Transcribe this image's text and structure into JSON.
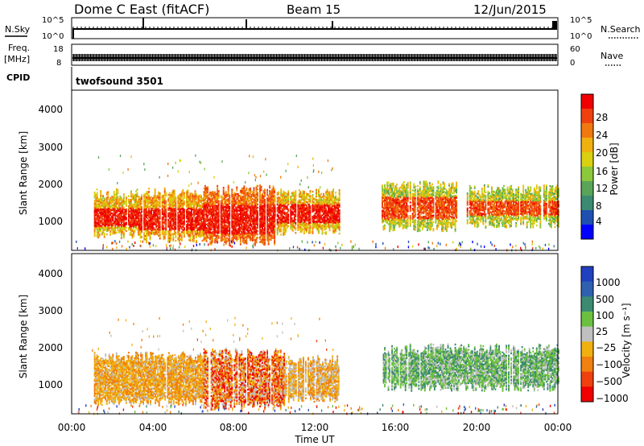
{
  "header": {
    "radar": "Dome C East (fitACF)",
    "beam": "Beam 15",
    "date": "12/Jun/2015"
  },
  "top_panels": {
    "nsky": {
      "label": "N.Sky",
      "ticks": [
        "10^5",
        "10^0"
      ]
    },
    "nsearch": {
      "label": "N.Search",
      "ticks": [
        "10^5",
        "10^0"
      ]
    },
    "freq": {
      "label_line1": "Freq.",
      "label_line2": "[MHz]",
      "ticks": [
        "18",
        "8"
      ]
    },
    "nave": {
      "label": "Nave",
      "ticks": [
        "60",
        "0"
      ]
    },
    "cpid": {
      "label": "CPID",
      "program": "twofsound 3501"
    }
  },
  "panels": {
    "power": {
      "ylabel": "Slant Range [km]",
      "yticks": [
        "4000",
        "3000",
        "2000",
        "1000"
      ],
      "cbar_label": "Power [dB]",
      "cbar_ticks": [
        "28",
        "24",
        "20",
        "16",
        "12",
        "8",
        "4"
      ]
    },
    "velocity": {
      "ylabel": "Slant Range [km]",
      "yticks": [
        "4000",
        "3000",
        "2000",
        "1000"
      ],
      "cbar_label": "Velocity [m s⁻¹]",
      "cbar_ticks": [
        "1000",
        "500",
        "100",
        "25",
        "−25",
        "−100",
        "−500",
        "−1000"
      ]
    }
  },
  "xaxis": {
    "label": "Time UT",
    "ticks": [
      "00:00",
      "04:00",
      "08:00",
      "12:00",
      "16:00",
      "20:00",
      "00:00"
    ]
  },
  "colors": {
    "power_scale": [
      "#0000ff",
      "#1f4fb0",
      "#3c8a72",
      "#5aa45a",
      "#8cc83c",
      "#d8d010",
      "#f0b010",
      "#f07810",
      "#f04010",
      "#f00000"
    ],
    "velocity_scale": [
      "#2040c0",
      "#3060b0",
      "#3c8a72",
      "#6cc040",
      "#c0c0c0",
      "#f0b010",
      "#f08010",
      "#f04010",
      "#f00000"
    ]
  },
  "chart_data": [
    {
      "type": "heatmap",
      "name": "Power",
      "xlabel": "Time UT",
      "ylabel": "Slant Range [km]",
      "xlim_hours": [
        0,
        24
      ],
      "ylim_km": [
        180,
        4500
      ],
      "zlim": [
        0,
        30
      ],
      "zlabel": "Power [dB]",
      "segments": [
        {
          "t0": 1.1,
          "t1": 3.3,
          "r0": 600,
          "r1": 1700,
          "core": [
            800,
            1300
          ],
          "zmin": 14,
          "zmax": 30
        },
        {
          "t0": 3.3,
          "t1": 6.5,
          "r0": 500,
          "r1": 1700,
          "core": [
            700,
            1300
          ],
          "zmin": 16,
          "zmax": 30
        },
        {
          "t0": 6.5,
          "t1": 10.0,
          "r0": 400,
          "r1": 1800,
          "core": [
            600,
            1400
          ],
          "zmin": 20,
          "zmax": 30
        },
        {
          "t0": 10.0,
          "t1": 13.2,
          "r0": 700,
          "r1": 1700,
          "core": [
            900,
            1400
          ],
          "zmin": 14,
          "zmax": 30
        },
        {
          "t0": 15.3,
          "t1": 19.0,
          "r0": 800,
          "r1": 1900,
          "core": [
            1000,
            1600
          ],
          "zmin": 10,
          "zmax": 28
        },
        {
          "t0": 19.5,
          "t1": 24.0,
          "r0": 900,
          "r1": 1800,
          "core": [
            1100,
            1500
          ],
          "zmin": 10,
          "zmax": 28
        }
      ]
    },
    {
      "type": "heatmap",
      "name": "Velocity",
      "xlabel": "Time UT",
      "ylabel": "Slant Range [km]",
      "xlim_hours": [
        0,
        24
      ],
      "ylim_km": [
        180,
        4500
      ],
      "zlim": [
        -1000,
        1000
      ],
      "zlabel": "Velocity [m s⁻¹]",
      "segments": [
        {
          "t0": 1.1,
          "t1": 6.5,
          "r0": 500,
          "r1": 1700,
          "vmin": -500,
          "vmax": -25
        },
        {
          "t0": 6.5,
          "t1": 10.5,
          "r0": 400,
          "r1": 1800,
          "vmin": -1000,
          "vmax": 100
        },
        {
          "t0": 10.5,
          "t1": 13.2,
          "r0": 600,
          "r1": 1600,
          "vmin": -500,
          "vmax": 100
        },
        {
          "t0": 15.3,
          "t1": 24.0,
          "r0": 900,
          "r1": 1900,
          "vmin": -25,
          "vmax": 500
        }
      ]
    }
  ]
}
